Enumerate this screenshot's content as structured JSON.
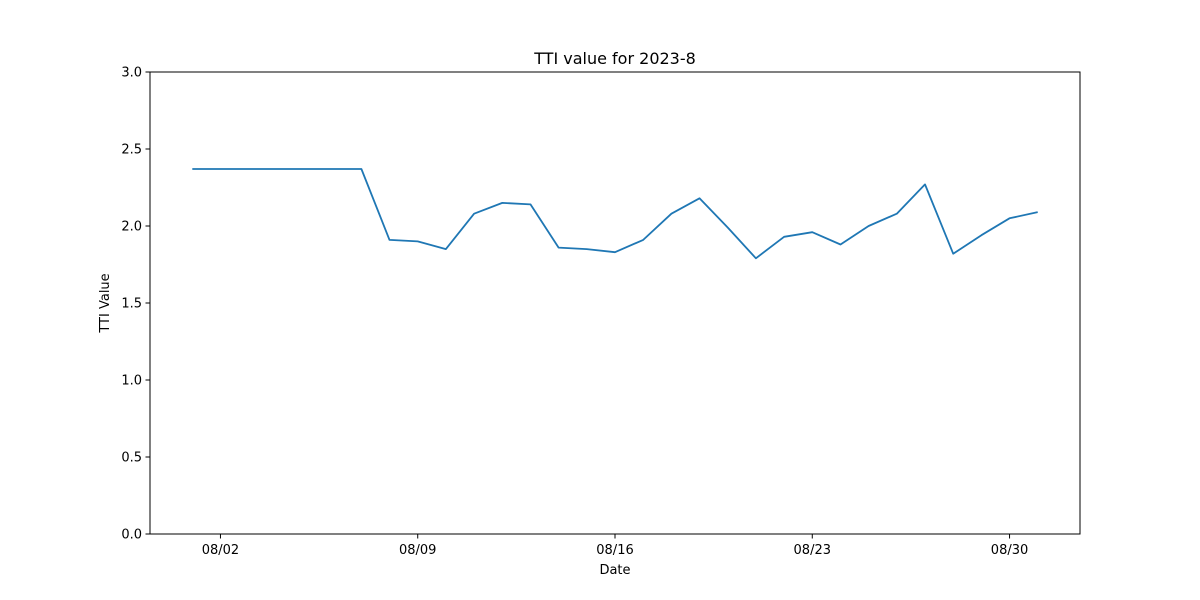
{
  "chart_data": {
    "type": "line",
    "title": "TTI value for 2023-8",
    "xlabel": "Date",
    "ylabel": "TTI Value",
    "ylim": [
      0,
      3
    ],
    "yticks": [
      0.0,
      0.5,
      1.0,
      1.5,
      2.0,
      2.5,
      3.0
    ],
    "ytick_labels": [
      "0.0",
      "0.5",
      "1.0",
      "1.5",
      "2.0",
      "2.5",
      "3.0"
    ],
    "xlim": [
      "2023-07-30 12:00",
      "2023-09-01 12:00"
    ],
    "xticks": [
      "2023-08-02",
      "2023-08-09",
      "2023-08-16",
      "2023-08-23",
      "2023-08-30"
    ],
    "xtick_labels": [
      "08/02",
      "08/09",
      "08/16",
      "08/23",
      "08/30"
    ],
    "grid": false,
    "line_color": "#1f77b4",
    "series": [
      {
        "x": [
          "2023-08-01",
          "2023-08-02",
          "2023-08-03",
          "2023-08-04",
          "2023-08-05",
          "2023-08-06",
          "2023-08-07",
          "2023-08-08",
          "2023-08-09",
          "2023-08-10",
          "2023-08-11",
          "2023-08-12",
          "2023-08-13",
          "2023-08-14",
          "2023-08-15",
          "2023-08-16",
          "2023-08-17",
          "2023-08-18",
          "2023-08-19",
          "2023-08-20",
          "2023-08-21",
          "2023-08-22",
          "2023-08-23",
          "2023-08-24",
          "2023-08-25",
          "2023-08-26",
          "2023-08-27",
          "2023-08-28",
          "2023-08-29",
          "2023-08-30",
          "2023-08-31"
        ],
        "values": [
          2.37,
          2.37,
          2.37,
          2.37,
          2.37,
          2.37,
          2.37,
          1.91,
          1.9,
          1.85,
          2.08,
          2.15,
          2.14,
          1.86,
          1.85,
          1.83,
          1.91,
          2.08,
          2.18,
          1.99,
          1.79,
          1.93,
          1.96,
          1.88,
          2.0,
          2.08,
          2.27,
          1.82,
          1.94,
          2.05,
          2.09
        ]
      }
    ]
  }
}
